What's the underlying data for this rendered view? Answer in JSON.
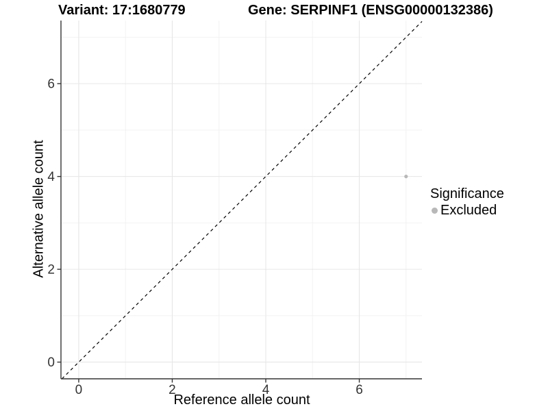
{
  "titles": {
    "variant": "Variant: 17:1680779",
    "gene": "Gene: SERPINF1 (ENSG00000132386)"
  },
  "axes": {
    "x_label": "Reference allele count",
    "y_label": "Alternative allele count"
  },
  "legend": {
    "title": "Significance",
    "items": [
      {
        "label": "Excluded",
        "color": "#b8b8b8"
      }
    ]
  },
  "chart_data": {
    "type": "scatter",
    "title_left": "Variant: 17:1680779",
    "title_right": "Gene: SERPINF1 (ENSG00000132386)",
    "xlabel": "Reference allele count",
    "ylabel": "Alternative allele count",
    "xlim": [
      -0.38,
      7.34
    ],
    "ylim": [
      -0.36,
      7.36
    ],
    "x_major_ticks": [
      0,
      2,
      4,
      6
    ],
    "y_major_ticks": [
      0,
      2,
      4,
      6
    ],
    "x_minor_ticks": [
      1,
      3,
      5,
      7
    ],
    "y_minor_ticks": [
      1,
      3,
      5,
      7
    ],
    "grid": true,
    "legend_position": "right",
    "legend_title": "Significance",
    "series": [
      {
        "name": "Excluded",
        "points": [
          {
            "x": 7,
            "y": 4
          }
        ],
        "color": "#b8b8b8"
      }
    ],
    "reference_line": {
      "slope": 1,
      "intercept": 0,
      "style": "dashed",
      "color": "#000000"
    },
    "style": {
      "background": "#ffffff",
      "grid_major_color": "#e6e6e6",
      "grid_minor_color": "#f2f2f2",
      "axis_color": "#333333",
      "tick_label_color": "#333333",
      "point_radius": 2.6,
      "tick_font_size": 19
    }
  }
}
